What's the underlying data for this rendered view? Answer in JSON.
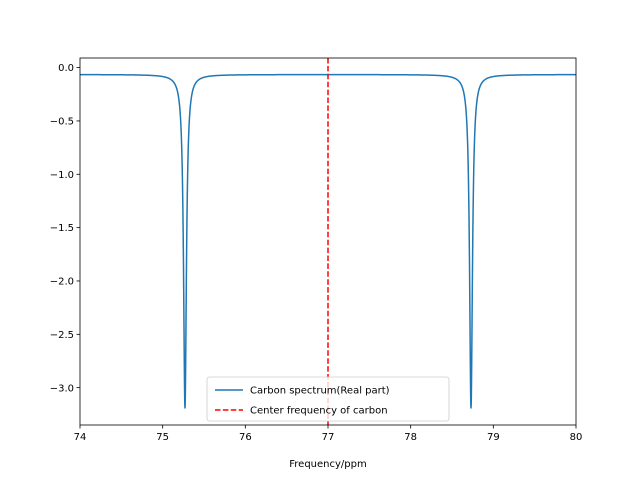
{
  "chart_data": {
    "type": "line",
    "title": "",
    "xlabel": "Frequency/ppm",
    "ylabel": "",
    "xlim": [
      74,
      80
    ],
    "ylim": [
      -3.35,
      0.09
    ],
    "x_ticks": [
      74,
      75,
      76,
      77,
      78,
      79,
      80
    ],
    "y_ticks": [
      0.0,
      -0.5,
      -1.0,
      -1.5,
      -2.0,
      -2.5,
      -3.0
    ],
    "x_tick_labels": [
      "74",
      "75",
      "76",
      "77",
      "78",
      "79",
      "80"
    ],
    "y_tick_labels": [
      "0.0",
      "−0.5",
      "−1.0",
      "−1.5",
      "−2.0",
      "−2.5",
      "−3.0"
    ],
    "grid": false,
    "legend_position": "lower center",
    "series": [
      {
        "name": "Carbon spectrum(Real part)",
        "color": "#1f77b4",
        "style": "solid",
        "baseline": -0.065,
        "dips": [
          {
            "center": 75.27,
            "depth": -3.19,
            "halfwidth": 0.021
          },
          {
            "center": 78.73,
            "depth": -3.19,
            "halfwidth": 0.021
          }
        ]
      },
      {
        "name": "Center frequency of carbon",
        "color": "#ff0000",
        "style": "dashed",
        "vline_x": 77.0
      }
    ]
  }
}
